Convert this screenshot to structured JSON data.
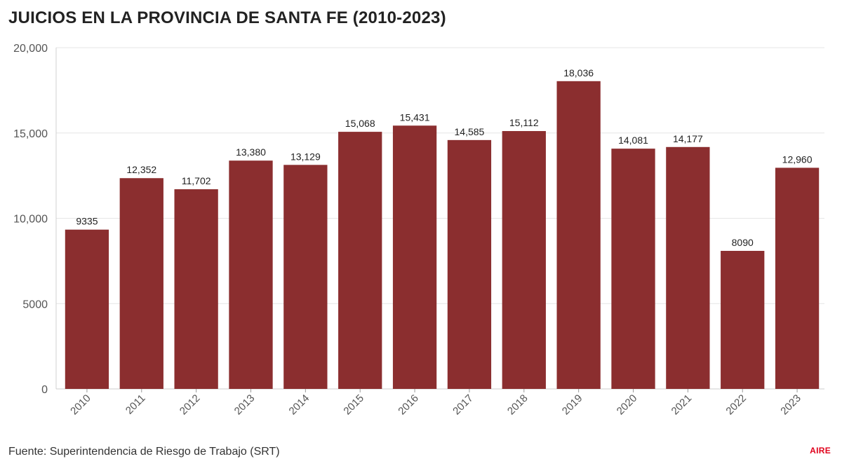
{
  "chart_data": {
    "type": "bar",
    "title": "JUICIOS EN LA PROVINCIA DE SANTA FE (2010-2023)",
    "categories": [
      "2010",
      "2011",
      "2012",
      "2013",
      "2014",
      "2015",
      "2016",
      "2017",
      "2018",
      "2019",
      "2020",
      "2021",
      "2022",
      "2023"
    ],
    "values": [
      9335,
      12352,
      11702,
      13380,
      13129,
      15068,
      15431,
      14585,
      15112,
      18036,
      14081,
      14177,
      8090,
      12960
    ],
    "value_labels": [
      "9335",
      "12,352",
      "11,702",
      "13,380",
      "13,129",
      "15,068",
      "15,431",
      "14,585",
      "15,112",
      "18,036",
      "14,081",
      "14,177",
      "8090",
      "12,960"
    ],
    "ylim": [
      0,
      20000
    ],
    "yticks": [
      0,
      5000,
      10000,
      15000,
      20000
    ],
    "ytick_labels": [
      "0",
      "5000",
      "10,000",
      "15,000",
      "20,000"
    ],
    "xlabel": "",
    "ylabel": "",
    "grid": true,
    "bar_color": "#8b2e2f",
    "source": "Fuente: Superintendencia de Riesgo de Trabajo (SRT)"
  },
  "brand": {
    "logo_text": "AIRE",
    "logo_color": "#e0001b"
  }
}
